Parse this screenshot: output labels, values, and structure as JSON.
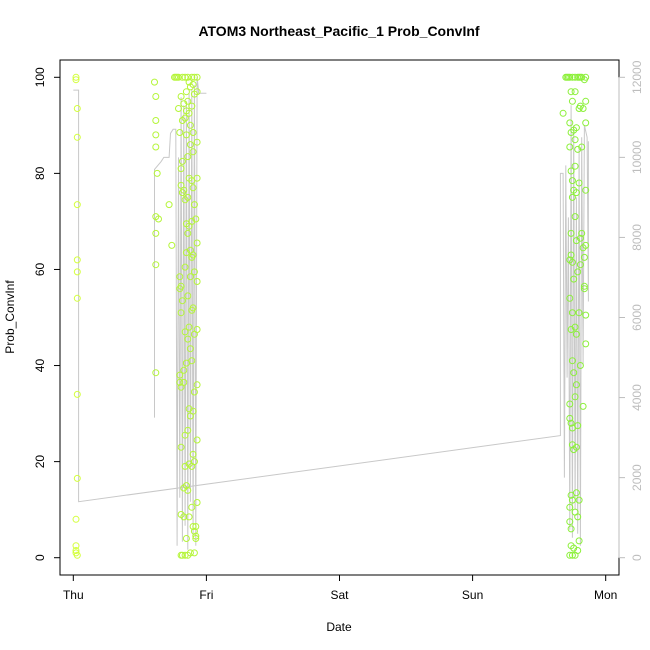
{
  "chart_data": {
    "type": "scatter",
    "title": "ATOM3 Northeast_Pacific_1 Prob_ConvInf",
    "xlabel": "Date",
    "ylabel": "Prob_ConvInf",
    "x_ticks": [
      "Thu",
      "Fri",
      "Sat",
      "Sun",
      "Mon"
    ],
    "y_ticks": [
      0,
      20,
      40,
      60,
      80,
      100
    ],
    "y_right_ticks": [
      0,
      2000,
      4000,
      6000,
      8000,
      10000,
      12000
    ],
    "xlim_days": [
      -0.1,
      4.1
    ],
    "ylim": [
      -3.6,
      103.6
    ],
    "y_right_lim": [
      -432,
      12432
    ],
    "colors": {
      "early_points": "#d4ff3f",
      "mid_points": "#b5f53a",
      "late_points": "#8cf03a",
      "line": "#c8c8c8",
      "axis": "#000000",
      "right_axis": "#bdbdbd"
    },
    "series": [
      {
        "type": "points",
        "points": [
          [
            0.02,
            99.5
          ],
          [
            0.02,
            100
          ],
          [
            0.02,
            2.5
          ],
          [
            0.02,
            1.5
          ],
          [
            0.02,
            1.0
          ],
          [
            0.02,
            8.0
          ],
          [
            0.03,
            93.5
          ],
          [
            0.03,
            87.5
          ],
          [
            0.03,
            73.5
          ],
          [
            0.03,
            62.0
          ],
          [
            0.03,
            59.5
          ],
          [
            0.03,
            54.0
          ],
          [
            0.03,
            34.0
          ],
          [
            0.03,
            16.5
          ],
          [
            0.03,
            0.5
          ],
          [
            0.61,
            99.0
          ],
          [
            0.62,
            96.0
          ],
          [
            0.62,
            91.0
          ],
          [
            0.62,
            88.0
          ],
          [
            0.62,
            85.5
          ],
          [
            0.62,
            71.0
          ],
          [
            0.62,
            67.5
          ],
          [
            0.62,
            61.0
          ],
          [
            0.62,
            38.5
          ],
          [
            0.63,
            80.0
          ],
          [
            0.64,
            70.5
          ],
          [
            0.72,
            73.5
          ],
          [
            0.74,
            65.0
          ],
          [
            0.76,
            100
          ],
          [
            0.77,
            100
          ],
          [
            0.78,
            100
          ],
          [
            0.79,
            100
          ],
          [
            0.79,
            93.5
          ],
          [
            0.8,
            88.5
          ],
          [
            0.8,
            58.5
          ],
          [
            0.8,
            56.0
          ],
          [
            0.8,
            38.0
          ],
          [
            0.8,
            36.5
          ],
          [
            0.81,
            96.0
          ],
          [
            0.81,
            81.0
          ],
          [
            0.81,
            77.5
          ],
          [
            0.81,
            56.5
          ],
          [
            0.81,
            51.0
          ],
          [
            0.81,
            35.5
          ],
          [
            0.81,
            23.0
          ],
          [
            0.81,
            9.0
          ],
          [
            0.81,
            0.5
          ],
          [
            0.82,
            100
          ],
          [
            0.82,
            91.0
          ],
          [
            0.82,
            82.5
          ],
          [
            0.82,
            76.0
          ],
          [
            0.82,
            53.5
          ],
          [
            0.82,
            0.5
          ],
          [
            0.83,
            94.5
          ],
          [
            0.83,
            76.5
          ],
          [
            0.83,
            39.0
          ],
          [
            0.83,
            36.5
          ],
          [
            0.83,
            14.5
          ],
          [
            0.83,
            8.5
          ],
          [
            0.84,
            100
          ],
          [
            0.84,
            91.5
          ],
          [
            0.84,
            74.5
          ],
          [
            0.84,
            60.5
          ],
          [
            0.84,
            47.0
          ],
          [
            0.84,
            25.5
          ],
          [
            0.84,
            19.0
          ],
          [
            0.84,
            0.5
          ],
          [
            0.85,
            97.0
          ],
          [
            0.85,
            93.0
          ],
          [
            0.85,
            88.0
          ],
          [
            0.85,
            69.5
          ],
          [
            0.85,
            63.5
          ],
          [
            0.85,
            40.5
          ],
          [
            0.85,
            15.0
          ],
          [
            0.85,
            4.0
          ],
          [
            0.86,
            100
          ],
          [
            0.86,
            95.0
          ],
          [
            0.86,
            83.5
          ],
          [
            0.86,
            75.0
          ],
          [
            0.86,
            67.5
          ],
          [
            0.86,
            54.5
          ],
          [
            0.86,
            45.5
          ],
          [
            0.86,
            26.5
          ],
          [
            0.86,
            14.0
          ],
          [
            0.86,
            0.5
          ],
          [
            0.87,
            99.0
          ],
          [
            0.87,
            92.5
          ],
          [
            0.87,
            79.0
          ],
          [
            0.87,
            69.0
          ],
          [
            0.87,
            48.0
          ],
          [
            0.87,
            31.0
          ],
          [
            0.87,
            19.5
          ],
          [
            0.87,
            8.5
          ],
          [
            0.88,
            98.0
          ],
          [
            0.88,
            90.0
          ],
          [
            0.88,
            86.0
          ],
          [
            0.88,
            64.0
          ],
          [
            0.88,
            58.5
          ],
          [
            0.88,
            43.5
          ],
          [
            0.88,
            29.5
          ],
          [
            0.88,
            1.0
          ],
          [
            0.89,
            100
          ],
          [
            0.89,
            94.0
          ],
          [
            0.89,
            78.5
          ],
          [
            0.89,
            70.0
          ],
          [
            0.89,
            62.5
          ],
          [
            0.89,
            51.5
          ],
          [
            0.89,
            41.0
          ],
          [
            0.89,
            19.0
          ],
          [
            0.89,
            10.5
          ],
          [
            0.9,
            98.5
          ],
          [
            0.9,
            88.5
          ],
          [
            0.9,
            84.5
          ],
          [
            0.9,
            77.0
          ],
          [
            0.9,
            63.0
          ],
          [
            0.9,
            52.0
          ],
          [
            0.9,
            30.5
          ],
          [
            0.9,
            21.5
          ],
          [
            0.9,
            6.5
          ],
          [
            0.91,
            100
          ],
          [
            0.91,
            96.5
          ],
          [
            0.91,
            73.5
          ],
          [
            0.91,
            59.5
          ],
          [
            0.91,
            46.5
          ],
          [
            0.91,
            34.5
          ],
          [
            0.91,
            20.0
          ],
          [
            0.91,
            5.5
          ],
          [
            0.91,
            1.0
          ],
          [
            0.92,
            70.5
          ],
          [
            0.92,
            6.5
          ],
          [
            0.92,
            4.5
          ],
          [
            0.92,
            4.0
          ],
          [
            0.93,
            100
          ],
          [
            0.93,
            97.0
          ],
          [
            0.93,
            86.5
          ],
          [
            0.93,
            79.0
          ],
          [
            0.93,
            65.5
          ],
          [
            0.93,
            57.5
          ],
          [
            0.93,
            47.5
          ],
          [
            0.93,
            36.0
          ],
          [
            0.93,
            24.5
          ],
          [
            0.93,
            11.5
          ]
        ]
      },
      {
        "type": "points",
        "points": [
          [
            3.68,
            92.5
          ],
          [
            3.7,
            100
          ],
          [
            3.71,
            100
          ],
          [
            3.72,
            100
          ],
          [
            3.73,
            100
          ],
          [
            3.73,
            90.5
          ],
          [
            3.73,
            85.5
          ],
          [
            3.73,
            62.0
          ],
          [
            3.73,
            54.0
          ],
          [
            3.73,
            32.0
          ],
          [
            3.73,
            29.0
          ],
          [
            3.73,
            10.5
          ],
          [
            3.73,
            7.5
          ],
          [
            3.73,
            0.5
          ],
          [
            3.74,
            97.0
          ],
          [
            3.74,
            88.5
          ],
          [
            3.74,
            80.5
          ],
          [
            3.74,
            67.5
          ],
          [
            3.74,
            63.0
          ],
          [
            3.74,
            47.5
          ],
          [
            3.74,
            28.0
          ],
          [
            3.74,
            13.0
          ],
          [
            3.74,
            6.0
          ],
          [
            3.74,
            2.5
          ],
          [
            3.75,
            100
          ],
          [
            3.75,
            95.0
          ],
          [
            3.75,
            78.5
          ],
          [
            3.75,
            75.0
          ],
          [
            3.75,
            61.5
          ],
          [
            3.75,
            51.0
          ],
          [
            3.75,
            41.0
          ],
          [
            3.75,
            27.0
          ],
          [
            3.75,
            23.5
          ],
          [
            3.75,
            12.0
          ],
          [
            3.75,
            0.5
          ],
          [
            3.76,
            89.0
          ],
          [
            3.76,
            76.5
          ],
          [
            3.76,
            58.0
          ],
          [
            3.76,
            38.5
          ],
          [
            3.76,
            22.5
          ],
          [
            3.76,
            2.0
          ],
          [
            3.77,
            100
          ],
          [
            3.77,
            97.0
          ],
          [
            3.77,
            87.0
          ],
          [
            3.77,
            81.5
          ],
          [
            3.77,
            71.0
          ],
          [
            3.77,
            48.0
          ],
          [
            3.77,
            33.5
          ],
          [
            3.77,
            9.5
          ],
          [
            3.77,
            0.5
          ],
          [
            3.78,
            89.5
          ],
          [
            3.78,
            76.0
          ],
          [
            3.78,
            66.0
          ],
          [
            3.78,
            46.5
          ],
          [
            3.78,
            36.0
          ],
          [
            3.78,
            23.0
          ],
          [
            3.78,
            13.5
          ],
          [
            3.79,
            100
          ],
          [
            3.79,
            85.0
          ],
          [
            3.79,
            59.5
          ],
          [
            3.79,
            27.5
          ],
          [
            3.79,
            8.5
          ],
          [
            3.79,
            1.5
          ],
          [
            3.8,
            100
          ],
          [
            3.8,
            93.5
          ],
          [
            3.8,
            78.0
          ],
          [
            3.8,
            51.0
          ],
          [
            3.8,
            12.0
          ],
          [
            3.8,
            3.5
          ],
          [
            3.81,
            100
          ],
          [
            3.81,
            94.0
          ],
          [
            3.81,
            66.5
          ],
          [
            3.81,
            61.0
          ],
          [
            3.81,
            40.0
          ],
          [
            3.82,
            100
          ],
          [
            3.82,
            85.5
          ],
          [
            3.82,
            67.5
          ],
          [
            3.83,
            93.5
          ],
          [
            3.83,
            64.5
          ],
          [
            3.83,
            31.5
          ],
          [
            3.84,
            99.5
          ],
          [
            3.84,
            56.5
          ],
          [
            3.84,
            56.0
          ],
          [
            3.84,
            62.5
          ],
          [
            3.85,
            95.0
          ],
          [
            3.85,
            90.5
          ],
          [
            3.85,
            76.5
          ],
          [
            3.85,
            65.0
          ],
          [
            3.85,
            50.5
          ],
          [
            3.85,
            44.5
          ],
          [
            3.85,
            100
          ]
        ]
      },
      {
        "type": "line",
        "axis": "right",
        "points": [
          [
            0.0,
            11680
          ],
          [
            0.04,
            11680
          ],
          [
            0.04,
            1400
          ],
          [
            3.66,
            3050
          ],
          [
            3.66,
            9600
          ],
          [
            3.68,
            9600
          ],
          [
            3.69,
            2000
          ],
          [
            3.7,
            9800
          ],
          [
            3.71,
            4500
          ],
          [
            3.72,
            8500
          ],
          [
            3.73,
            700
          ],
          [
            3.74,
            11300
          ],
          [
            3.75,
            500
          ],
          [
            3.76,
            10800
          ],
          [
            3.77,
            1200
          ],
          [
            3.78,
            9000
          ],
          [
            3.79,
            600
          ],
          [
            3.8,
            10200
          ],
          [
            3.81,
            300
          ],
          [
            3.82,
            10500
          ],
          [
            3.83,
            4800
          ],
          [
            3.84,
            10800
          ],
          [
            3.86,
            10500
          ],
          [
            3.87,
            6400
          ],
          [
            3.87,
            10400
          ]
        ]
      },
      {
        "type": "line",
        "axis": "right",
        "points": [
          [
            0.61,
            3500
          ],
          [
            0.61,
            9700
          ],
          [
            0.66,
            9900
          ],
          [
            0.68,
            10000
          ],
          [
            0.72,
            10000
          ],
          [
            0.73,
            10600
          ],
          [
            0.75,
            10700
          ],
          [
            0.77,
            10700
          ],
          [
            0.78,
            300
          ],
          [
            0.79,
            10000
          ],
          [
            0.8,
            1500
          ],
          [
            0.81,
            11500
          ],
          [
            0.82,
            400
          ],
          [
            0.83,
            11300
          ],
          [
            0.84,
            800
          ],
          [
            0.85,
            11400
          ],
          [
            0.86,
            200
          ],
          [
            0.87,
            11600
          ],
          [
            0.88,
            1400
          ],
          [
            0.89,
            11700
          ],
          [
            0.9,
            500
          ],
          [
            0.91,
            11800
          ],
          [
            0.92,
            300
          ],
          [
            0.93,
            12000
          ],
          [
            0.94,
            11700
          ],
          [
            0.94,
            11600
          ],
          [
            1.0,
            11600
          ]
        ]
      }
    ]
  }
}
